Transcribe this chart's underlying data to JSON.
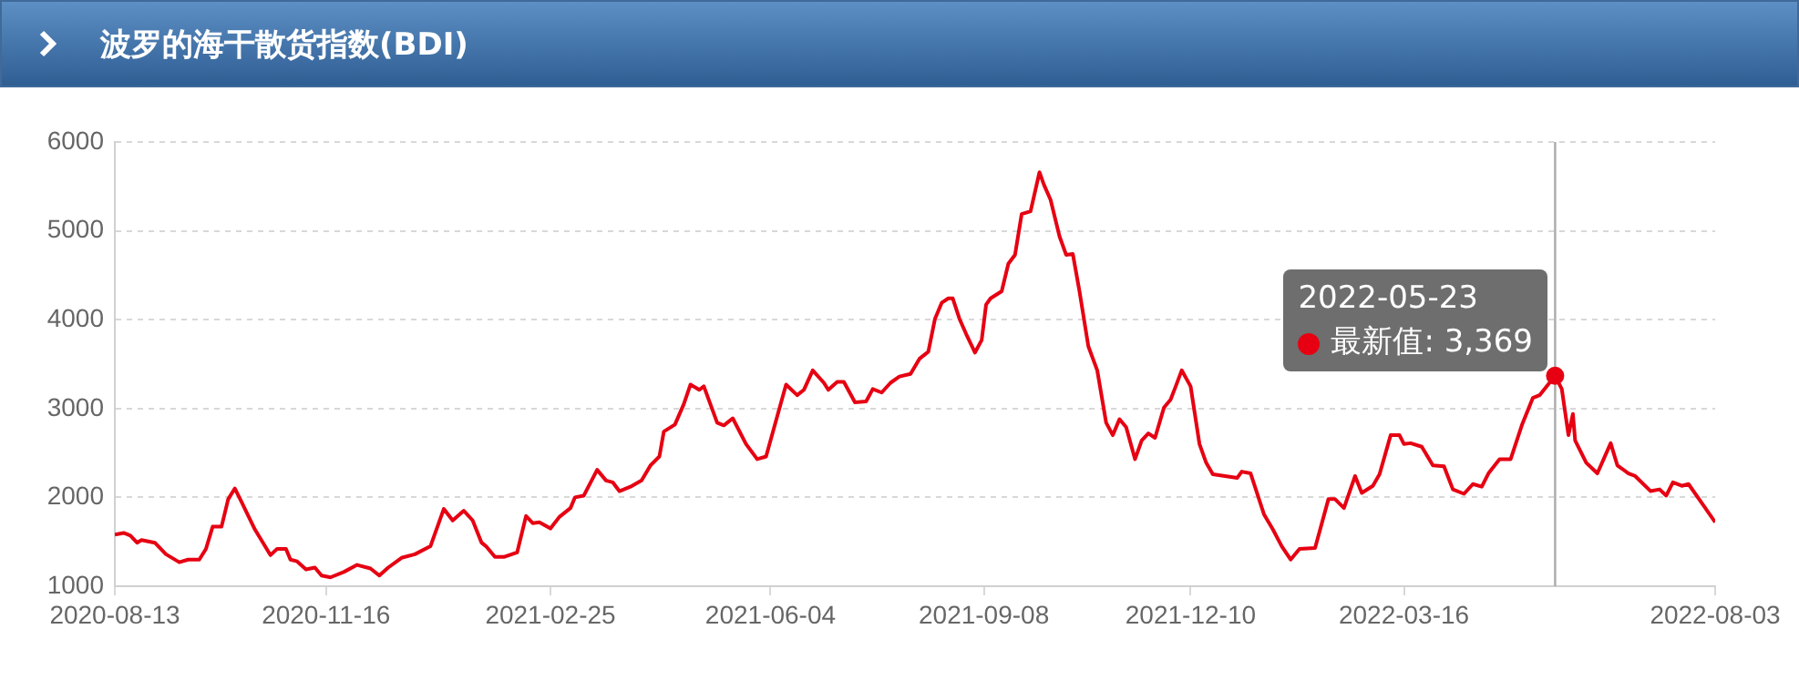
{
  "chart_data": {
    "type": "line",
    "title": "波罗的海干散货指数(BDI)",
    "x": [
      "2020-08-13",
      "2020-08-17",
      "2020-08-20",
      "2020-08-23",
      "2020-08-25",
      "2020-08-31",
      "2020-09-05",
      "2020-09-11",
      "2020-09-15",
      "2020-09-20",
      "2020-09-23",
      "2020-09-26",
      "2020-09-30",
      "2020-10-03",
      "2020-10-06",
      "2020-10-09",
      "2020-10-15",
      "2020-10-22",
      "2020-10-25",
      "2020-10-29",
      "2020-10-31",
      "2020-11-03",
      "2020-11-07",
      "2020-11-11",
      "2020-11-14",
      "2020-11-18",
      "2020-11-24",
      "2020-11-30",
      "2020-12-06",
      "2020-12-10",
      "2020-12-14",
      "2020-12-20",
      "2020-12-26",
      "2021-01-02",
      "2021-01-08",
      "2021-01-12",
      "2021-01-17",
      "2021-01-21",
      "2021-01-25",
      "2021-01-27",
      "2021-01-31",
      "2021-02-04",
      "2021-02-10",
      "2021-02-14",
      "2021-02-17",
      "2021-02-20",
      "2021-02-25",
      "2021-03-01",
      "2021-03-06",
      "2021-03-08",
      "2021-03-12",
      "2021-03-18",
      "2021-03-22",
      "2021-03-25",
      "2021-03-28",
      "2021-04-02",
      "2021-04-07",
      "2021-04-11",
      "2021-04-15",
      "2021-04-17",
      "2021-04-22",
      "2021-04-26",
      "2021-04-29",
      "2021-05-03",
      "2021-05-05",
      "2021-05-11",
      "2021-05-14",
      "2021-05-18",
      "2021-05-24",
      "2021-05-29",
      "2021-06-02",
      "2021-06-07",
      "2021-06-11",
      "2021-06-16",
      "2021-06-19",
      "2021-06-23",
      "2021-06-28",
      "2021-06-30",
      "2021-07-04",
      "2021-07-07",
      "2021-07-12",
      "2021-07-17",
      "2021-07-20",
      "2021-07-24",
      "2021-07-28",
      "2021-08-01",
      "2021-08-06",
      "2021-08-10",
      "2021-08-14",
      "2021-08-17",
      "2021-08-20",
      "2021-08-23",
      "2021-08-25",
      "2021-08-28",
      "2021-08-31",
      "2021-09-04",
      "2021-09-07",
      "2021-09-09",
      "2021-09-11",
      "2021-09-16",
      "2021-09-19",
      "2021-09-22",
      "2021-09-25",
      "2021-09-29",
      "2021-10-03",
      "2021-10-05",
      "2021-10-08",
      "2021-10-12",
      "2021-10-15",
      "2021-10-18",
      "2021-10-21",
      "2021-10-25",
      "2021-10-29",
      "2021-11-02",
      "2021-11-05",
      "2021-11-08",
      "2021-11-11",
      "2021-11-15",
      "2021-11-18",
      "2021-11-21",
      "2021-11-24",
      "2021-11-28",
      "2021-12-01",
      "2021-12-03",
      "2021-12-06",
      "2021-12-10",
      "2021-12-14",
      "2021-12-17",
      "2021-12-20",
      "2021-12-31",
      "2022-01-02",
      "2022-01-06",
      "2022-01-12",
      "2022-01-16",
      "2022-01-20",
      "2022-01-24",
      "2022-01-28",
      "2022-02-04",
      "2022-02-10",
      "2022-02-13",
      "2022-02-17",
      "2022-02-22",
      "2022-02-25",
      "2022-03-02",
      "2022-03-05",
      "2022-03-10",
      "2022-03-14",
      "2022-03-16",
      "2022-03-19",
      "2022-03-24",
      "2022-03-29",
      "2022-04-03",
      "2022-04-07",
      "2022-04-12",
      "2022-04-16",
      "2022-04-20",
      "2022-04-23",
      "2022-04-28",
      "2022-05-03",
      "2022-05-08",
      "2022-05-13",
      "2022-05-16",
      "2022-05-23",
      "2022-05-26",
      "2022-05-29",
      "2022-05-31",
      "2022-06-01",
      "2022-06-06",
      "2022-06-11",
      "2022-06-17",
      "2022-06-20",
      "2022-06-25",
      "2022-06-28",
      "2022-07-05",
      "2022-07-09",
      "2022-07-12",
      "2022-07-15",
      "2022-07-19",
      "2022-07-22",
      "2022-07-29",
      "2022-08-03"
    ],
    "series": [
      {
        "color": "#e60012",
        "values": [
          1580,
          1600,
          1570,
          1490,
          1520,
          1490,
          1360,
          1270,
          1300,
          1300,
          1420,
          1670,
          1670,
          1980,
          2100,
          1950,
          1640,
          1350,
          1420,
          1420,
          1300,
          1280,
          1190,
          1210,
          1120,
          1100,
          1160,
          1240,
          1200,
          1120,
          1210,
          1320,
          1360,
          1450,
          1870,
          1740,
          1850,
          1740,
          1490,
          1450,
          1330,
          1330,
          1380,
          1790,
          1710,
          1720,
          1650,
          1780,
          1880,
          2000,
          2020,
          2310,
          2190,
          2170,
          2070,
          2120,
          2190,
          2360,
          2460,
          2740,
          2820,
          3050,
          3270,
          3210,
          3250,
          2840,
          2810,
          2890,
          2600,
          2430,
          2460,
          2910,
          3270,
          3150,
          3210,
          3430,
          3290,
          3210,
          3300,
          3300,
          3070,
          3080,
          3220,
          3180,
          3290,
          3360,
          3390,
          3560,
          3640,
          4010,
          4190,
          4240,
          4240,
          4010,
          3840,
          3630,
          3770,
          4170,
          4240,
          4320,
          4630,
          4730,
          5190,
          5220,
          5660,
          5520,
          5350,
          4940,
          4730,
          4740,
          4320,
          3700,
          3430,
          2840,
          2700,
          2880,
          2790,
          2430,
          2640,
          2720,
          2670,
          3010,
          3100,
          3230,
          3430,
          3250,
          2600,
          2390,
          2260,
          2220,
          2290,
          2270,
          1810,
          1640,
          1450,
          1300,
          1420,
          1430,
          1980,
          1980,
          1880,
          2240,
          2050,
          2130,
          2260,
          2700,
          2700,
          2600,
          2610,
          2570,
          2360,
          2350,
          2090,
          2040,
          2150,
          2120,
          2270,
          2430,
          2430,
          2810,
          3120,
          3150,
          3369,
          3220,
          2700,
          2940,
          2640,
          2390,
          2270,
          2610,
          2360,
          2270,
          2240,
          2070,
          2090,
          2020,
          2170,
          2130,
          2150,
          1900,
          1720
        ]
      }
    ],
    "xlim": [
      "2020-08-13",
      "2022-08-03"
    ],
    "xticks": [
      "2020-08-13",
      "2020-11-16",
      "2021-02-25",
      "2021-06-04",
      "2021-09-08",
      "2021-12-10",
      "2022-03-16",
      "2022-08-03"
    ],
    "ylim": [
      1000,
      6000
    ],
    "yticks": [
      1000,
      2000,
      3000,
      4000,
      5000,
      6000
    ],
    "grid": "y",
    "ref_lines": [
      {
        "axis": "x",
        "value": "2022-05-23",
        "color": "#aaaaaa"
      }
    ],
    "annotations": [
      {
        "text": "2022-05-23\n最新值: 3,369",
        "x": "2022-05-23",
        "y": 3369
      }
    ]
  }
}
